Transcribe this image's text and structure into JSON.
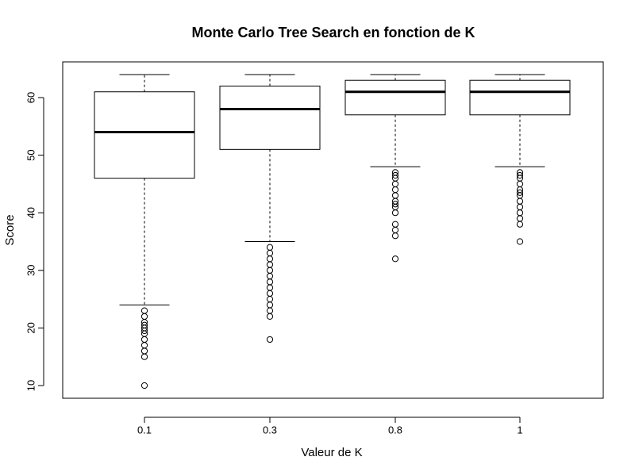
{
  "chart_data": {
    "type": "boxplot",
    "title": "Monte Carlo Tree Search en fonction de K",
    "xlabel": "Valeur de K",
    "ylabel": "Score",
    "ylim": [
      8,
      66
    ],
    "y_ticks": [
      10,
      20,
      30,
      40,
      50,
      60
    ],
    "categories": [
      "0.1",
      "0.3",
      "0.8",
      "1"
    ],
    "boxes": [
      {
        "category": "0.1",
        "whisker_low": 24,
        "q1": 46,
        "median": 54,
        "q3": 61,
        "whisker_high": 64,
        "outliers": [
          23,
          22,
          21,
          20.5,
          20,
          19.5,
          19,
          18,
          17,
          16,
          15,
          10
        ]
      },
      {
        "category": "0.3",
        "whisker_low": 35,
        "q1": 51,
        "median": 58,
        "q3": 62,
        "whisker_high": 64,
        "outliers": [
          34,
          33,
          32,
          31,
          30,
          29,
          28,
          27,
          26,
          25,
          24,
          23,
          22,
          18
        ]
      },
      {
        "category": "0.8",
        "whisker_low": 48,
        "q1": 57,
        "median": 61,
        "q3": 63,
        "whisker_high": 64,
        "outliers": [
          47,
          46.5,
          46,
          45,
          44,
          43,
          42,
          41.5,
          41,
          40,
          38,
          37,
          36,
          32
        ]
      },
      {
        "category": "1",
        "whisker_low": 48,
        "q1": 57,
        "median": 61,
        "q3": 63,
        "whisker_high": 64,
        "outliers": [
          47,
          46.5,
          46,
          45,
          44,
          43.5,
          43,
          42,
          41,
          40,
          39,
          38,
          35
        ]
      }
    ]
  }
}
